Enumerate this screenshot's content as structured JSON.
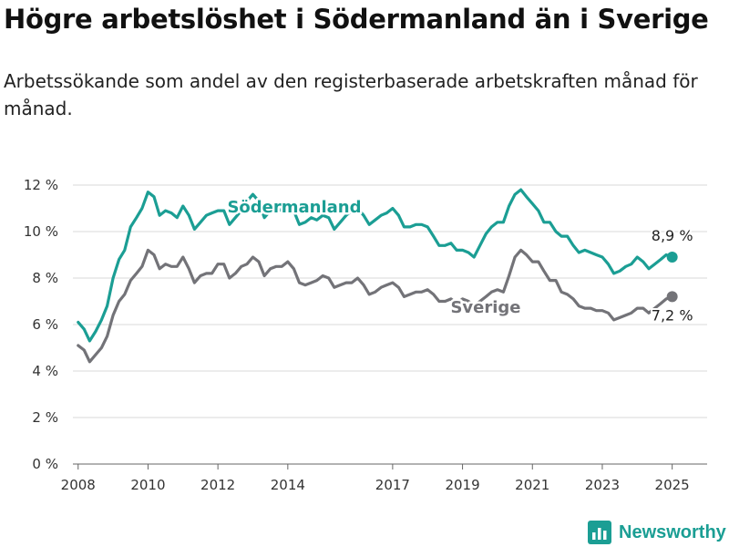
{
  "title": "Högre arbetslöshet i Södermanland än i Sverige",
  "subtitle": "Arbetssökande som andel av den registerbaserade arbetskraften månad för månad.",
  "brand": {
    "name": "Newsworthy",
    "color": "#1b9e94"
  },
  "chart_data": {
    "type": "line",
    "title": "Högre arbetslöshet i Södermanland än i Sverige",
    "subtitle": "Arbetssökande som andel av den registerbaserade arbetskraften månad för månad.",
    "xlabel": "",
    "ylabel": "",
    "xlim": [
      2007.85,
      2026.0
    ],
    "ylim": [
      0,
      12
    ],
    "y_ticks": [
      0,
      2,
      4,
      6,
      8,
      10,
      12
    ],
    "y_tick_labels": [
      "0 %",
      "2 %",
      "4 %",
      "6 %",
      "8 %",
      "10 %",
      "12 %"
    ],
    "x_ticks": [
      2008,
      2010,
      2012,
      2014,
      2017,
      2019,
      2021,
      2023,
      2025
    ],
    "x_tick_labels": [
      "2008",
      "2010",
      "2012",
      "2014",
      "2017",
      "2019",
      "2021",
      "2023",
      "2025"
    ],
    "grid": "horizontal",
    "legend": "inline labels",
    "series": [
      {
        "name": "Södermanland",
        "color": "#1b9e94",
        "end_label": "8,9 %",
        "points": [
          [
            2008.0,
            6.1
          ],
          [
            2008.17,
            5.8
          ],
          [
            2008.33,
            5.3
          ],
          [
            2008.5,
            5.7
          ],
          [
            2008.67,
            6.2
          ],
          [
            2008.83,
            6.8
          ],
          [
            2009.0,
            8.0
          ],
          [
            2009.17,
            8.8
          ],
          [
            2009.33,
            9.2
          ],
          [
            2009.5,
            10.2
          ],
          [
            2009.67,
            10.6
          ],
          [
            2009.83,
            11.0
          ],
          [
            2010.0,
            11.7
          ],
          [
            2010.17,
            11.5
          ],
          [
            2010.33,
            10.7
          ],
          [
            2010.5,
            10.9
          ],
          [
            2010.67,
            10.8
          ],
          [
            2010.83,
            10.6
          ],
          [
            2011.0,
            11.1
          ],
          [
            2011.17,
            10.7
          ],
          [
            2011.33,
            10.1
          ],
          [
            2011.5,
            10.4
          ],
          [
            2011.67,
            10.7
          ],
          [
            2011.83,
            10.8
          ],
          [
            2012.0,
            10.9
          ],
          [
            2012.17,
            10.9
          ],
          [
            2012.33,
            10.3
          ],
          [
            2012.5,
            10.6
          ],
          [
            2012.67,
            10.9
          ],
          [
            2012.83,
            11.3
          ],
          [
            2013.0,
            11.6
          ],
          [
            2013.17,
            11.3
          ],
          [
            2013.33,
            10.6
          ],
          [
            2013.5,
            10.9
          ],
          [
            2013.67,
            11.0
          ],
          [
            2013.83,
            10.9
          ],
          [
            2014.0,
            11.1
          ],
          [
            2014.17,
            10.9
          ],
          [
            2014.33,
            10.3
          ],
          [
            2014.5,
            10.4
          ],
          [
            2014.67,
            10.6
          ],
          [
            2014.83,
            10.5
          ],
          [
            2015.0,
            10.7
          ],
          [
            2015.17,
            10.6
          ],
          [
            2015.33,
            10.1
          ],
          [
            2015.5,
            10.4
          ],
          [
            2015.67,
            10.7
          ],
          [
            2015.83,
            10.9
          ],
          [
            2016.0,
            11.0
          ],
          [
            2016.17,
            10.7
          ],
          [
            2016.33,
            10.3
          ],
          [
            2016.5,
            10.5
          ],
          [
            2016.67,
            10.7
          ],
          [
            2016.83,
            10.8
          ],
          [
            2017.0,
            11.0
          ],
          [
            2017.17,
            10.7
          ],
          [
            2017.33,
            10.2
          ],
          [
            2017.5,
            10.2
          ],
          [
            2017.67,
            10.3
          ],
          [
            2017.83,
            10.3
          ],
          [
            2018.0,
            10.2
          ],
          [
            2018.17,
            9.8
          ],
          [
            2018.33,
            9.4
          ],
          [
            2018.5,
            9.4
          ],
          [
            2018.67,
            9.5
          ],
          [
            2018.83,
            9.2
          ],
          [
            2019.0,
            9.2
          ],
          [
            2019.17,
            9.1
          ],
          [
            2019.33,
            8.9
          ],
          [
            2019.5,
            9.4
          ],
          [
            2019.67,
            9.9
          ],
          [
            2019.83,
            10.2
          ],
          [
            2020.0,
            10.4
          ],
          [
            2020.17,
            10.4
          ],
          [
            2020.33,
            11.1
          ],
          [
            2020.5,
            11.6
          ],
          [
            2020.67,
            11.8
          ],
          [
            2020.83,
            11.5
          ],
          [
            2021.0,
            11.2
          ],
          [
            2021.17,
            10.9
          ],
          [
            2021.33,
            10.4
          ],
          [
            2021.5,
            10.4
          ],
          [
            2021.67,
            10.0
          ],
          [
            2021.83,
            9.8
          ],
          [
            2022.0,
            9.8
          ],
          [
            2022.17,
            9.4
          ],
          [
            2022.33,
            9.1
          ],
          [
            2022.5,
            9.2
          ],
          [
            2022.67,
            9.1
          ],
          [
            2022.83,
            9.0
          ],
          [
            2023.0,
            8.9
          ],
          [
            2023.17,
            8.6
          ],
          [
            2023.33,
            8.2
          ],
          [
            2023.5,
            8.3
          ],
          [
            2023.67,
            8.5
          ],
          [
            2023.83,
            8.6
          ],
          [
            2024.0,
            8.9
          ],
          [
            2024.17,
            8.7
          ],
          [
            2024.33,
            8.4
          ],
          [
            2024.5,
            8.6
          ],
          [
            2024.67,
            8.8
          ],
          [
            2024.83,
            9.0
          ],
          [
            2025.0,
            8.9
          ]
        ]
      },
      {
        "name": "Sverige",
        "color": "#737378",
        "end_label": "7,2 %",
        "points": [
          [
            2008.0,
            5.1
          ],
          [
            2008.17,
            4.9
          ],
          [
            2008.33,
            4.4
          ],
          [
            2008.5,
            4.7
          ],
          [
            2008.67,
            5.0
          ],
          [
            2008.83,
            5.5
          ],
          [
            2009.0,
            6.4
          ],
          [
            2009.17,
            7.0
          ],
          [
            2009.33,
            7.3
          ],
          [
            2009.5,
            7.9
          ],
          [
            2009.67,
            8.2
          ],
          [
            2009.83,
            8.5
          ],
          [
            2010.0,
            9.2
          ],
          [
            2010.17,
            9.0
          ],
          [
            2010.33,
            8.4
          ],
          [
            2010.5,
            8.6
          ],
          [
            2010.67,
            8.5
          ],
          [
            2010.83,
            8.5
          ],
          [
            2011.0,
            8.9
          ],
          [
            2011.17,
            8.4
          ],
          [
            2011.33,
            7.8
          ],
          [
            2011.5,
            8.1
          ],
          [
            2011.67,
            8.2
          ],
          [
            2011.83,
            8.2
          ],
          [
            2012.0,
            8.6
          ],
          [
            2012.17,
            8.6
          ],
          [
            2012.33,
            8.0
          ],
          [
            2012.5,
            8.2
          ],
          [
            2012.67,
            8.5
          ],
          [
            2012.83,
            8.6
          ],
          [
            2013.0,
            8.9
          ],
          [
            2013.17,
            8.7
          ],
          [
            2013.33,
            8.1
          ],
          [
            2013.5,
            8.4
          ],
          [
            2013.67,
            8.5
          ],
          [
            2013.83,
            8.5
          ],
          [
            2014.0,
            8.7
          ],
          [
            2014.17,
            8.4
          ],
          [
            2014.33,
            7.8
          ],
          [
            2014.5,
            7.7
          ],
          [
            2014.67,
            7.8
          ],
          [
            2014.83,
            7.9
          ],
          [
            2015.0,
            8.1
          ],
          [
            2015.17,
            8.0
          ],
          [
            2015.33,
            7.6
          ],
          [
            2015.5,
            7.7
          ],
          [
            2015.67,
            7.8
          ],
          [
            2015.83,
            7.8
          ],
          [
            2016.0,
            8.0
          ],
          [
            2016.17,
            7.7
          ],
          [
            2016.33,
            7.3
          ],
          [
            2016.5,
            7.4
          ],
          [
            2016.67,
            7.6
          ],
          [
            2016.83,
            7.7
          ],
          [
            2017.0,
            7.8
          ],
          [
            2017.17,
            7.6
          ],
          [
            2017.33,
            7.2
          ],
          [
            2017.5,
            7.3
          ],
          [
            2017.67,
            7.4
          ],
          [
            2017.83,
            7.4
          ],
          [
            2018.0,
            7.5
          ],
          [
            2018.17,
            7.3
          ],
          [
            2018.33,
            7.0
          ],
          [
            2018.5,
            7.0
          ],
          [
            2018.67,
            7.1
          ],
          [
            2018.83,
            6.9
          ],
          [
            2019.0,
            7.1
          ],
          [
            2019.17,
            7.0
          ],
          [
            2019.33,
            6.8
          ],
          [
            2019.5,
            7.0
          ],
          [
            2019.67,
            7.2
          ],
          [
            2019.83,
            7.4
          ],
          [
            2020.0,
            7.5
          ],
          [
            2020.17,
            7.4
          ],
          [
            2020.33,
            8.1
          ],
          [
            2020.5,
            8.9
          ],
          [
            2020.67,
            9.2
          ],
          [
            2020.83,
            9.0
          ],
          [
            2021.0,
            8.7
          ],
          [
            2021.17,
            8.7
          ],
          [
            2021.33,
            8.3
          ],
          [
            2021.5,
            7.9
          ],
          [
            2021.67,
            7.9
          ],
          [
            2021.83,
            7.4
          ],
          [
            2022.0,
            7.3
          ],
          [
            2022.17,
            7.1
          ],
          [
            2022.33,
            6.8
          ],
          [
            2022.5,
            6.7
          ],
          [
            2022.67,
            6.7
          ],
          [
            2022.83,
            6.6
          ],
          [
            2023.0,
            6.6
          ],
          [
            2023.17,
            6.5
          ],
          [
            2023.33,
            6.2
          ],
          [
            2023.5,
            6.3
          ],
          [
            2023.67,
            6.4
          ],
          [
            2023.83,
            6.5
          ],
          [
            2024.0,
            6.7
          ],
          [
            2024.17,
            6.7
          ],
          [
            2024.33,
            6.5
          ],
          [
            2024.5,
            6.7
          ],
          [
            2024.67,
            6.9
          ],
          [
            2024.83,
            7.1
          ],
          [
            2025.0,
            7.2
          ]
        ]
      }
    ]
  }
}
